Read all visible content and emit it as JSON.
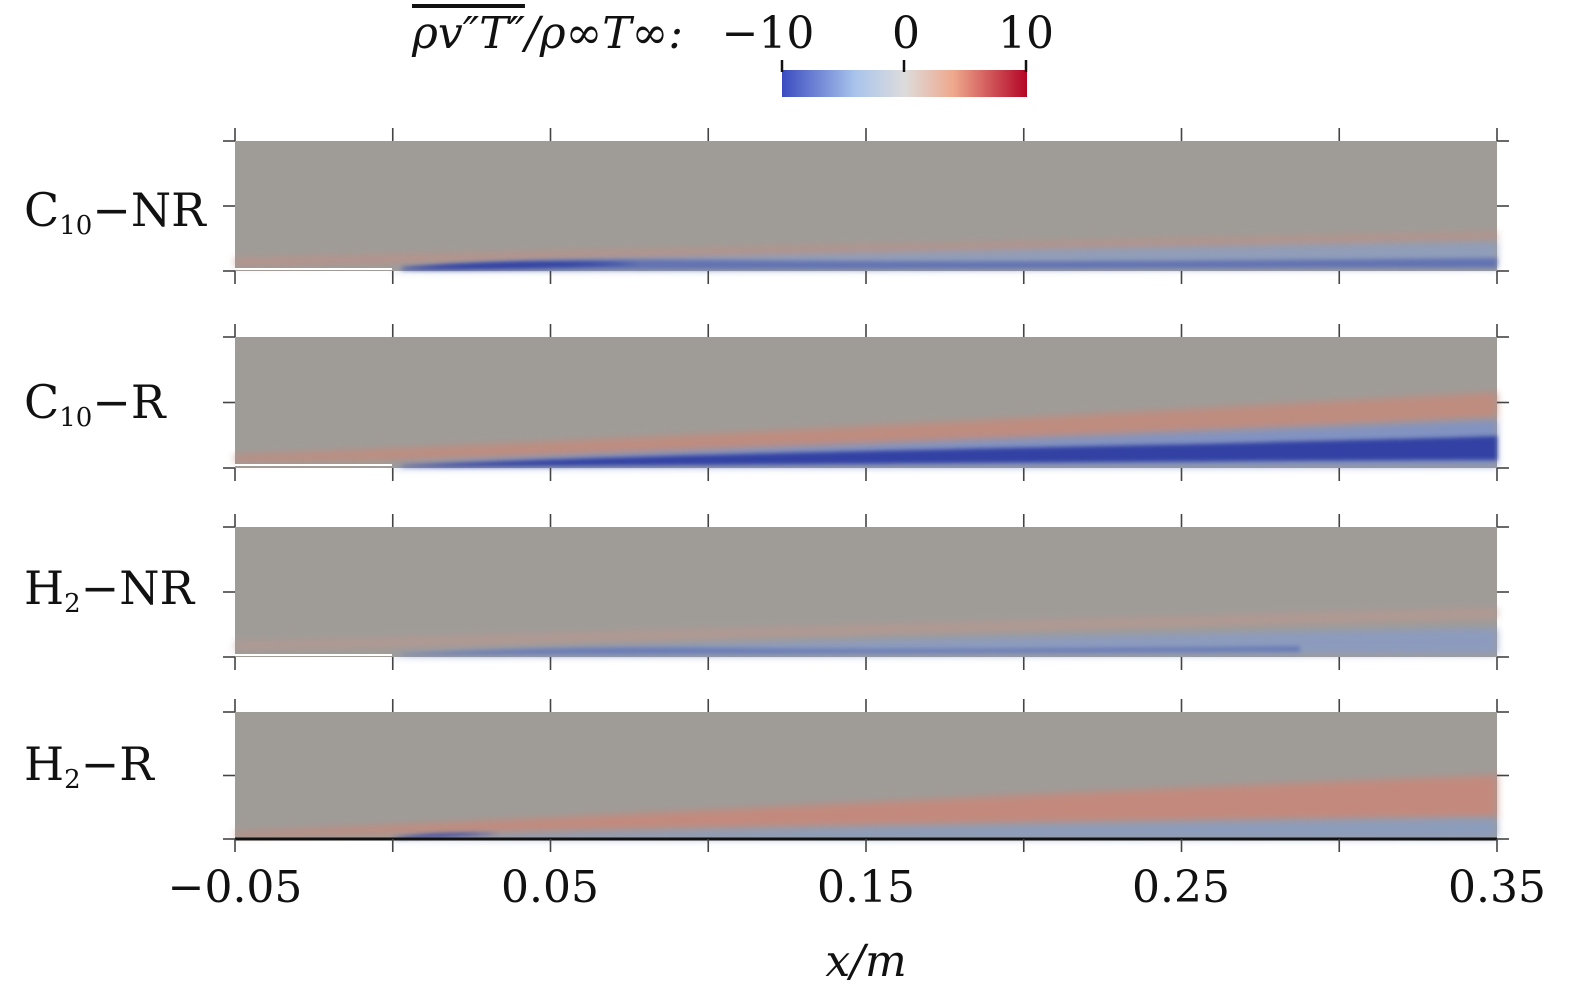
{
  "colorbar": {
    "label_main": "ρv″T″",
    "label_rest": "/ρ∞T∞:",
    "min": -10,
    "max": 10,
    "ticks": [
      "−10",
      "0",
      "10"
    ],
    "tick_values": [
      -10,
      0,
      10
    ],
    "colors": [
      "#3b4cc0",
      "#a9c4ec",
      "#dddcdc",
      "#eea88d",
      "#b40426"
    ]
  },
  "chart_data": {
    "type": "heatmap",
    "title": "",
    "xlabel": "x/m",
    "xlim": [
      -0.05,
      0.35
    ],
    "xticks": [
      -0.05,
      0.05,
      0.15,
      0.25,
      0.35
    ],
    "xtick_labels": [
      "−0.05",
      "0.05",
      "0.15",
      "0.25",
      "0.35"
    ],
    "minor_xticks": [
      0.0,
      0.1,
      0.2,
      0.3
    ],
    "colorbar_range": [
      -10,
      10
    ],
    "panels": [
      {
        "label_base": "C",
        "label_sub": "10",
        "label_suffix": "−NR",
        "name": "C10-NR",
        "features": {
          "negative_peak": -9,
          "positive_peak": 3,
          "neg_x_peak": 0.06
        }
      },
      {
        "label_base": "C",
        "label_sub": "10",
        "label_suffix": "−R",
        "name": "C10-R",
        "features": {
          "negative_peak": -10,
          "positive_peak": 6,
          "neg_x_peak": 0.2
        }
      },
      {
        "label_base": "H",
        "label_sub": "2",
        "label_suffix": "−NR",
        "name": "H2-NR",
        "features": {
          "negative_peak": -6,
          "positive_peak": 2,
          "neg_x_peak": 0.08
        }
      },
      {
        "label_base": "H",
        "label_sub": "2",
        "label_suffix": "−R",
        "name": "H2-R",
        "features": {
          "negative_peak": -8,
          "positive_peak": 6,
          "neg_x_peak": 0.01
        }
      }
    ]
  }
}
